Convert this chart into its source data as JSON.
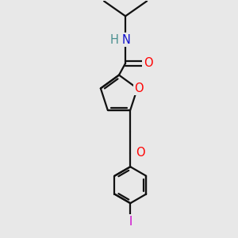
{
  "background_color": "#e8e8e8",
  "bond_color": "#111111",
  "atom_colors": {
    "O": "#ff0000",
    "N": "#1010cc",
    "H": "#4a9090",
    "I": "#cc00cc"
  },
  "bond_width": 1.6,
  "font_size_atoms": 10.5,
  "fig_width": 3.0,
  "fig_height": 3.0,
  "dpi": 100
}
